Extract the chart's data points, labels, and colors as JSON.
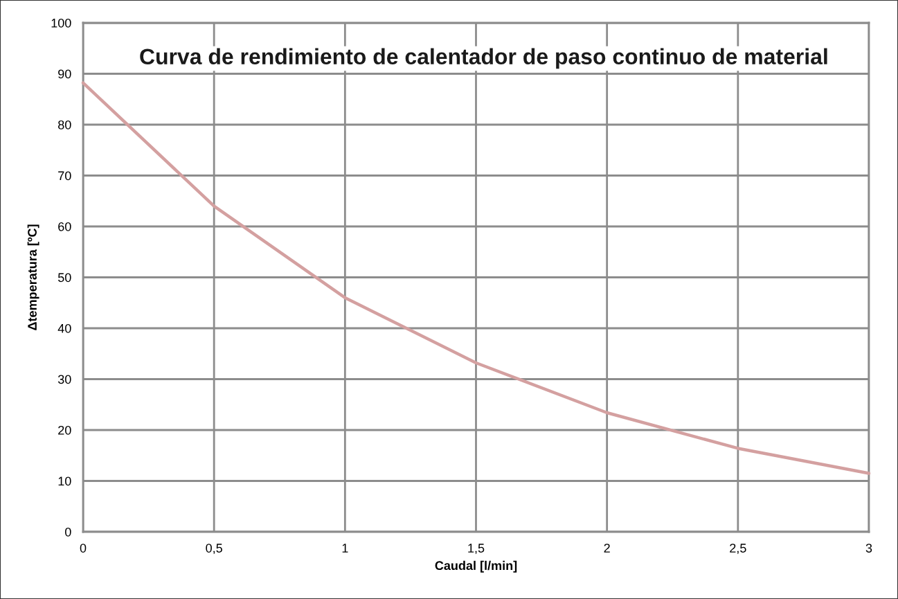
{
  "chart_data": {
    "type": "line",
    "title": "Curva de rendimiento de calentador de paso continuo de material",
    "xlabel": "Caudal [l/min]",
    "ylabel": "Δtemperatura [ºC]",
    "x": [
      0,
      0.5,
      1,
      1.5,
      2,
      2.5,
      3
    ],
    "series": [
      {
        "color": "#d4a0a0",
        "values": [
          88.2,
          64,
          46,
          33.2,
          23.4,
          16.4,
          11.5
        ]
      }
    ],
    "xlim": [
      0,
      3
    ],
    "ylim": [
      0,
      100
    ],
    "xticks": [
      0,
      {
        "value": 0.5,
        "label": "0,5"
      },
      1,
      {
        "value": 1.5,
        "label": "1,5"
      },
      2,
      {
        "value": 2.5,
        "label": "2,5"
      },
      3
    ],
    "yticks": [
      0,
      10,
      20,
      30,
      40,
      50,
      60,
      70,
      80,
      90,
      100
    ],
    "grid": true,
    "marker": "none",
    "line_style": "solid"
  }
}
